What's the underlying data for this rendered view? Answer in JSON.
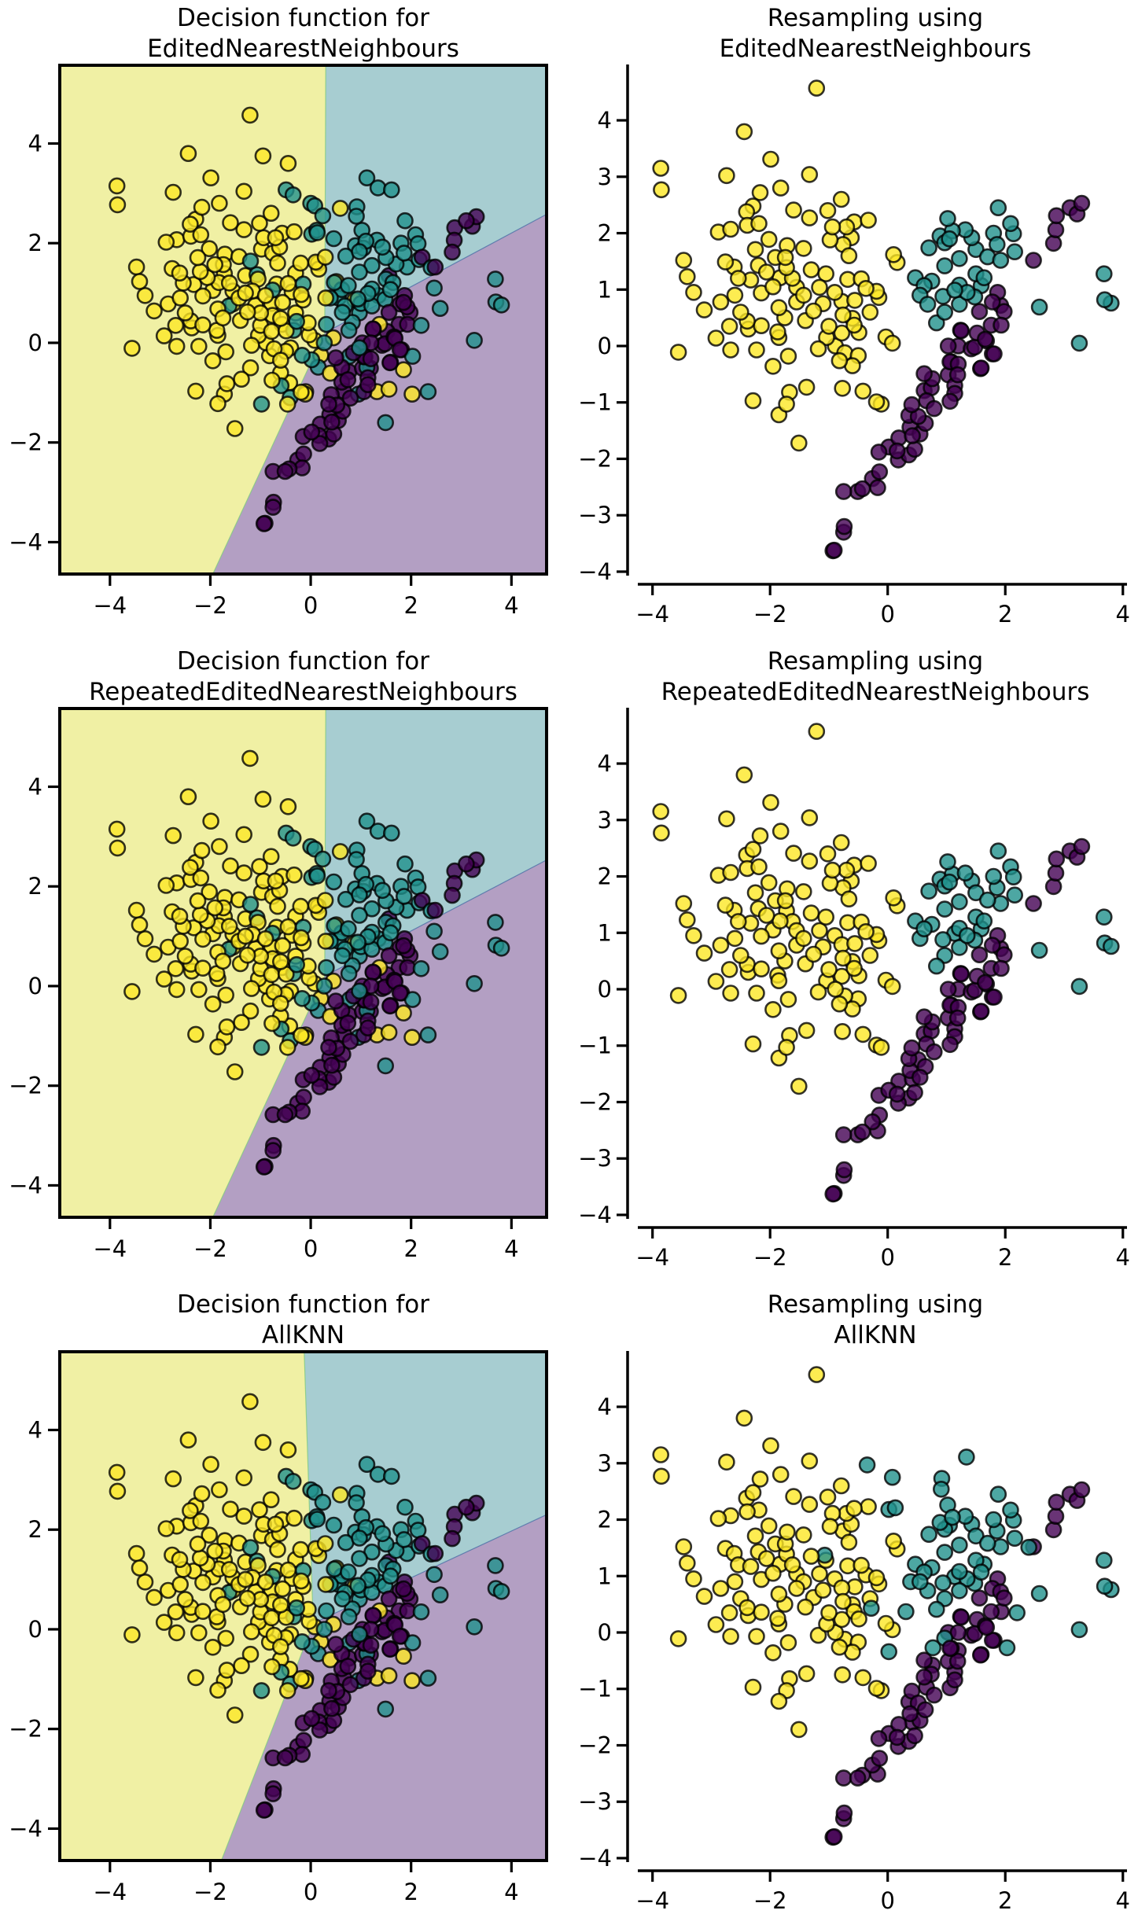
{
  "figure": {
    "panels": [
      {
        "id": "enn-decision",
        "kind": "decision",
        "title": [
          "Decision function for",
          "EditedNearestNeighbours"
        ],
        "boundary": "enn"
      },
      {
        "id": "enn-resampled",
        "kind": "resampled",
        "title": [
          "Resampling using",
          "EditedNearestNeighbours"
        ],
        "dataset": "enn"
      },
      {
        "id": "renn-decision",
        "kind": "decision",
        "title": [
          "Decision function for",
          "RepeatedEditedNearestNeighbours"
        ],
        "boundary": "renn"
      },
      {
        "id": "renn-resampled",
        "kind": "resampled",
        "title": [
          "Resampling using",
          "RepeatedEditedNearestNeighbours"
        ],
        "dataset": "renn"
      },
      {
        "id": "allknn-decision",
        "kind": "decision",
        "title": [
          "Decision function for",
          "AllKNN"
        ],
        "boundary": "allknn"
      },
      {
        "id": "allknn-resampled",
        "kind": "resampled",
        "title": [
          "Resampling using",
          "AllKNN"
        ],
        "dataset": "allknn"
      }
    ]
  },
  "chart_data": {
    "type": "scatter",
    "layout": "3 rows x 2 columns",
    "class_colors": {
      "0": "#440154",
      "1": "#21918c",
      "2": "#fde725"
    },
    "region_colors": {
      "0": "#b39fc3",
      "1": "#a7cdd1",
      "2": "#f0f0a4"
    },
    "marker_alpha": 0.8,
    "decision_axes": {
      "xlim": [
        -5.0,
        4.7
      ],
      "ylim": [
        -4.64,
        5.57
      ],
      "xticks": [
        -4,
        -2,
        0,
        2,
        4
      ],
      "yticks": [
        -4,
        -2,
        0,
        2,
        4
      ],
      "box": "full"
    },
    "resampled_axes": {
      "xlim": [
        -4.25,
        4.07
      ],
      "ylim": [
        -4.07,
        4.99
      ],
      "xticks": [
        -4,
        -2,
        0,
        2,
        4
      ],
      "yticks": [
        -4,
        -3,
        -2,
        -1,
        0,
        1,
        2,
        3,
        4
      ],
      "box": "despined"
    },
    "tick_labels": {
      "-4": "−4",
      "-3": "−3",
      "-2": "−2",
      "-1": "−1",
      "0": "0",
      "1": "1",
      "2": "2",
      "3": "3",
      "4": "4"
    },
    "decision_boundaries": {
      "enn": {
        "junction": [
          0.28,
          0.2
        ],
        "yellow_teal_top": [
          0.3,
          5.57
        ],
        "teal_purple_right": [
          4.7,
          2.58
        ],
        "yellow_purple_bottom": [
          -1.95,
          -4.64
        ]
      },
      "renn": {
        "junction": [
          0.28,
          0.2
        ],
        "yellow_teal_top": [
          0.3,
          5.57
        ],
        "teal_purple_right": [
          4.7,
          2.53
        ],
        "yellow_purple_bottom": [
          -1.95,
          -4.64
        ]
      },
      "allknn": {
        "junction": [
          0.05,
          0.12
        ],
        "yellow_teal_top": [
          -0.13,
          5.57
        ],
        "teal_purple_right": [
          4.7,
          2.3
        ],
        "yellow_purple_bottom": [
          -1.78,
          -4.64
        ]
      }
    },
    "points": {
      "yellow": [
        [
          -1.21,
          4.57
        ],
        [
          -2.44,
          3.8
        ],
        [
          -1.99,
          3.31
        ],
        [
          -3.86,
          3.15
        ],
        [
          -3.85,
          2.77
        ],
        [
          -2.74,
          3.02
        ],
        [
          -1.33,
          3.04
        ],
        [
          -1.82,
          2.8
        ],
        [
          -2.17,
          2.72
        ],
        [
          -0.79,
          2.6
        ],
        [
          -2.29,
          2.48
        ],
        [
          -2.4,
          2.38
        ],
        [
          -1.6,
          2.41
        ],
        [
          -1.33,
          2.27
        ],
        [
          -1.02,
          2.4
        ],
        [
          -0.33,
          2.23
        ],
        [
          -2.88,
          2.02
        ],
        [
          -2.67,
          2.07
        ],
        [
          -2.39,
          2.14
        ],
        [
          -2.19,
          2.17
        ],
        [
          -0.94,
          2.11
        ],
        [
          -0.7,
          2.11
        ],
        [
          -0.57,
          2.2
        ],
        [
          -0.98,
          1.88
        ],
        [
          -0.76,
          1.8
        ],
        [
          -0.62,
          1.92
        ],
        [
          -2.02,
          1.89
        ],
        [
          -1.71,
          1.78
        ],
        [
          -1.43,
          1.73
        ],
        [
          -2.25,
          1.71
        ],
        [
          -0.66,
          1.6
        ],
        [
          0.1,
          1.62
        ],
        [
          0.16,
          1.48
        ],
        [
          -3.47,
          1.52
        ],
        [
          -3.41,
          1.23
        ],
        [
          -3.3,
          0.95
        ],
        [
          -3.12,
          0.64
        ],
        [
          -2.84,
          0.78
        ],
        [
          -2.6,
          0.9
        ],
        [
          -2.76,
          1.49
        ],
        [
          -2.61,
          1.4
        ],
        [
          -2.54,
          1.2
        ],
        [
          -2.33,
          1.17
        ],
        [
          -2.15,
          0.94
        ],
        [
          -2.2,
          1.43
        ],
        [
          -2.06,
          1.31
        ],
        [
          -1.91,
          1.57
        ],
        [
          -1.74,
          1.57
        ],
        [
          -1.72,
          1.39
        ],
        [
          -1.83,
          1.21
        ],
        [
          -1.85,
          0.68
        ],
        [
          -1.55,
          1.04
        ],
        [
          -1.43,
          0.9
        ],
        [
          -1.55,
          0.78
        ],
        [
          -1.26,
          0.62
        ],
        [
          -1.16,
          1.04
        ],
        [
          -1.1,
          0.75
        ],
        [
          -0.78,
          0.79
        ],
        [
          -0.76,
          0.55
        ],
        [
          -0.68,
          1.18
        ],
        [
          -0.45,
          1.19
        ],
        [
          -0.37,
          1.02
        ],
        [
          -0.19,
          0.97
        ],
        [
          -0.15,
          0.86
        ],
        [
          -0.56,
          0.81
        ],
        [
          -0.6,
          0.49
        ],
        [
          -0.57,
          0.37
        ],
        [
          -0.49,
          0.24
        ],
        [
          -0.78,
          0.23
        ],
        [
          -1.04,
          0.15
        ],
        [
          -1.18,
          -0.05
        ],
        [
          -0.89,
          0.0
        ],
        [
          -0.73,
          -0.12
        ],
        [
          -0.5,
          -0.17
        ],
        [
          -0.6,
          -0.35
        ],
        [
          -0.82,
          -0.26
        ],
        [
          -1.69,
          -0.18
        ],
        [
          -1.95,
          -0.36
        ],
        [
          -2.23,
          -0.07
        ],
        [
          -2.67,
          -0.07
        ],
        [
          -3.56,
          -0.11
        ],
        [
          -2.92,
          0.14
        ],
        [
          -2.69,
          0.35
        ],
        [
          -2.39,
          0.44
        ],
        [
          -2.37,
          0.3
        ],
        [
          -2.15,
          0.36
        ],
        [
          -1.87,
          0.25
        ],
        [
          -1.85,
          0.15
        ],
        [
          -0.03,
          0.16
        ],
        [
          0.08,
          0.05
        ],
        [
          -2.29,
          -0.97
        ],
        [
          -1.67,
          -0.82
        ],
        [
          -1.72,
          -1.03
        ],
        [
          -1.85,
          -1.22
        ],
        [
          -1.38,
          -0.73
        ],
        [
          -0.77,
          -0.75
        ],
        [
          -0.42,
          -0.8
        ],
        [
          -0.19,
          -0.99
        ],
        [
          -0.11,
          -1.03
        ],
        [
          -1.51,
          -1.72
        ],
        [
          -1.95,
          1.05
        ],
        [
          -1.62,
          1.2
        ],
        [
          -1.3,
          1.35
        ],
        [
          -1.05,
          1.28
        ],
        [
          -0.9,
          0.95
        ],
        [
          -1.4,
          0.45
        ],
        [
          -1.0,
          0.35
        ],
        [
          -0.3,
          0.6
        ],
        [
          -2.5,
          0.6
        ],
        [
          -1.75,
          0.5
        ]
      ],
      "teal": [
        [
          1.88,
          2.45
        ],
        [
          1.02,
          2.26
        ],
        [
          1.1,
          2.04
        ],
        [
          1.32,
          2.06
        ],
        [
          1.43,
          1.92
        ],
        [
          2.09,
          2.17
        ],
        [
          2.14,
          1.99
        ],
        [
          2.16,
          1.67
        ],
        [
          0.89,
          1.95
        ],
        [
          0.97,
          1.83
        ],
        [
          0.7,
          1.74
        ],
        [
          1.5,
          1.71
        ],
        [
          1.7,
          1.58
        ],
        [
          1.86,
          1.8
        ],
        [
          1.92,
          1.52
        ],
        [
          1.22,
          1.55
        ],
        [
          0.97,
          1.42
        ],
        [
          0.47,
          1.21
        ],
        [
          0.62,
          1.07
        ],
        [
          0.68,
          0.74
        ],
        [
          0.83,
          0.41
        ],
        [
          0.97,
          0.6
        ],
        [
          1.22,
          0.74
        ],
        [
          1.22,
          1.08
        ],
        [
          1.5,
          1.28
        ],
        [
          1.64,
          1.21
        ],
        [
          1.59,
          1.07
        ],
        [
          1.48,
          0.87
        ],
        [
          1.14,
          0.99
        ],
        [
          0.94,
          0.88
        ],
        [
          2.58,
          0.69
        ],
        [
          3.68,
          1.28
        ],
        [
          3.69,
          0.82
        ],
        [
          3.8,
          0.76
        ],
        [
          3.26,
          0.05
        ],
        [
          1.05,
          1.9
        ],
        [
          0.55,
          0.9
        ],
        [
          1.35,
          0.95
        ],
        [
          1.8,
          2.0
        ],
        [
          0.75,
          1.15
        ]
      ],
      "purple": [
        [
          3.3,
          2.53
        ],
        [
          3.1,
          2.45
        ],
        [
          3.22,
          2.34
        ],
        [
          2.87,
          2.31
        ],
        [
          2.86,
          2.06
        ],
        [
          2.82,
          1.82
        ],
        [
          2.48,
          1.52
        ],
        [
          1.87,
          0.95
        ],
        [
          1.92,
          0.72
        ],
        [
          1.78,
          0.78
        ],
        [
          1.98,
          0.61
        ],
        [
          1.56,
          0.61
        ],
        [
          1.76,
          0.37
        ],
        [
          1.93,
          0.37
        ],
        [
          1.24,
          0.28
        ],
        [
          1.52,
          0.23
        ],
        [
          1.66,
          0.12
        ],
        [
          1.78,
          -0.14
        ],
        [
          1.03,
          0.0
        ],
        [
          1.2,
          0.0
        ],
        [
          1.42,
          -0.05
        ],
        [
          1.08,
          -0.28
        ],
        [
          1.2,
          -0.32
        ],
        [
          1.59,
          -0.39
        ],
        [
          1.25,
          0.27
        ],
        [
          1.48,
          -0.02
        ],
        [
          1.68,
          0.09
        ],
        [
          1.81,
          -0.14
        ],
        [
          1.58,
          -0.4
        ],
        [
          1.06,
          -0.28
        ],
        [
          1.03,
          -0.51
        ],
        [
          1.19,
          -0.51
        ],
        [
          1.14,
          -0.7
        ],
        [
          1.14,
          -0.84
        ],
        [
          1.06,
          -0.98
        ],
        [
          0.62,
          -0.49
        ],
        [
          0.76,
          -0.58
        ],
        [
          0.62,
          -0.79
        ],
        [
          0.74,
          -0.74
        ],
        [
          0.66,
          -0.97
        ],
        [
          0.79,
          -1.11
        ],
        [
          0.41,
          -1.04
        ],
        [
          0.36,
          -1.23
        ],
        [
          0.52,
          -1.25
        ],
        [
          0.64,
          -1.37
        ],
        [
          0.38,
          -1.44
        ],
        [
          0.55,
          -1.56
        ],
        [
          0.42,
          -1.59
        ],
        [
          0.19,
          -1.63
        ],
        [
          0.02,
          -1.79
        ],
        [
          -0.15,
          -1.88
        ],
        [
          0.16,
          -1.86
        ],
        [
          0.18,
          -2.02
        ],
        [
          0.46,
          -1.83
        ],
        [
          0.36,
          -1.93
        ],
        [
          -0.14,
          -2.23
        ],
        [
          -0.26,
          -2.35
        ],
        [
          -0.17,
          -2.51
        ],
        [
          -0.43,
          -2.53
        ],
        [
          -0.51,
          -2.58
        ],
        [
          -0.75,
          -2.58
        ],
        [
          -0.74,
          -3.2
        ],
        [
          -0.75,
          -3.3
        ],
        [
          -0.91,
          -3.62
        ],
        [
          -0.93,
          -3.63
        ]
      ],
      "extra_teal_original": [
        [
          -0.49,
          3.07
        ],
        [
          0.0,
          2.8
        ],
        [
          0.24,
          2.55
        ],
        [
          0.12,
          2.26
        ],
        [
          0.46,
          2.09
        ],
        [
          -1.2,
          1.64
        ],
        [
          -1.63,
          0.74
        ],
        [
          -0.76,
          1.06
        ],
        [
          -0.15,
          1.18
        ],
        [
          -0.34,
          0.25
        ],
        [
          0.15,
          -0.49
        ],
        [
          -0.59,
          -0.86
        ],
        [
          -0.17,
          -0.25
        ],
        [
          1.12,
          -0.49
        ],
        [
          1.49,
          -1.6
        ],
        [
          2.34,
          -0.98
        ],
        [
          0.63,
          0.61
        ],
        [
          1.0,
          0.79
        ],
        [
          0.27,
          0.0
        ],
        [
          0.76,
          0.25
        ],
        [
          1.12,
          3.31
        ],
        [
          1.61,
          3.07
        ],
        [
          2.46,
          1.1
        ],
        [
          0.95,
          -1.03
        ],
        [
          -0.41,
          -1.1
        ],
        [
          -0.98,
          -1.23
        ],
        [
          -1.07,
          1.37
        ],
        [
          -0.28,
          0.43
        ],
        [
          0.31,
          0.37
        ],
        [
          0.39,
          0.9
        ],
        [
          0.77,
          -0.27
        ],
        [
          0.97,
          -0.1
        ],
        [
          2.03,
          -0.27
        ],
        [
          2.2,
          0.35
        ],
        [
          2.4,
          1.51
        ],
        [
          -0.35,
          2.97
        ],
        [
          0.08,
          2.75
        ],
        [
          0.92,
          2.73
        ],
        [
          0.91,
          2.54
        ],
        [
          1.34,
          3.11
        ],
        [
          0.02,
          2.18
        ],
        [
          0.13,
          2.21
        ],
        [
          0.02,
          -0.34
        ]
      ],
      "extra_yellow_original": [
        [
          0.59,
          2.7
        ],
        [
          0.29,
          1.72
        ],
        [
          0.88,
          0.86
        ],
        [
          0.51,
          1.23
        ],
        [
          1.37,
          0.37
        ],
        [
          1.85,
          -0.54
        ],
        [
          1.56,
          -0.93
        ],
        [
          1.32,
          -0.98
        ],
        [
          2.02,
          -1.03
        ],
        [
          0.2,
          -0.25
        ],
        [
          0.39,
          -0.61
        ],
        [
          -0.1,
          -0.98
        ],
        [
          -0.46,
          -1.23
        ],
        [
          -0.45,
          3.6
        ],
        [
          -0.95,
          3.75
        ],
        [
          0.15,
          1.6
        ],
        [
          0.3,
          0.9
        ],
        [
          -0.2,
          1.6
        ],
        [
          -0.05,
          0.4
        ],
        [
          0.45,
          0.1
        ],
        [
          -1.3,
          1.0
        ],
        [
          -1.0,
          0.6
        ],
        [
          -0.3,
          1.4
        ],
        [
          -0.6,
          -0.6
        ],
        [
          -1.2,
          -0.5
        ],
        [
          -0.4,
          -0.1
        ]
      ],
      "extra_purple_original": [
        [
          1.56,
          1.35
        ],
        [
          1.85,
          0.81
        ],
        [
          2.22,
          1.72
        ],
        [
          0.5,
          -0.3
        ],
        [
          0.85,
          -0.2
        ]
      ],
      "allknn_extra_teal": [
        [
          -0.35,
          2.97
        ],
        [
          0.08,
          2.75
        ],
        [
          0.92,
          2.73
        ],
        [
          0.91,
          2.54
        ],
        [
          1.34,
          3.11
        ],
        [
          0.02,
          2.18
        ],
        [
          0.13,
          2.21
        ],
        [
          -1.07,
          1.37
        ],
        [
          -0.28,
          0.43
        ],
        [
          0.02,
          -0.34
        ],
        [
          0.31,
          0.37
        ],
        [
          0.39,
          0.9
        ],
        [
          0.77,
          -0.27
        ],
        [
          0.97,
          -0.1
        ],
        [
          2.03,
          -0.27
        ],
        [
          2.2,
          0.35
        ],
        [
          2.4,
          1.51
        ]
      ]
    }
  }
}
